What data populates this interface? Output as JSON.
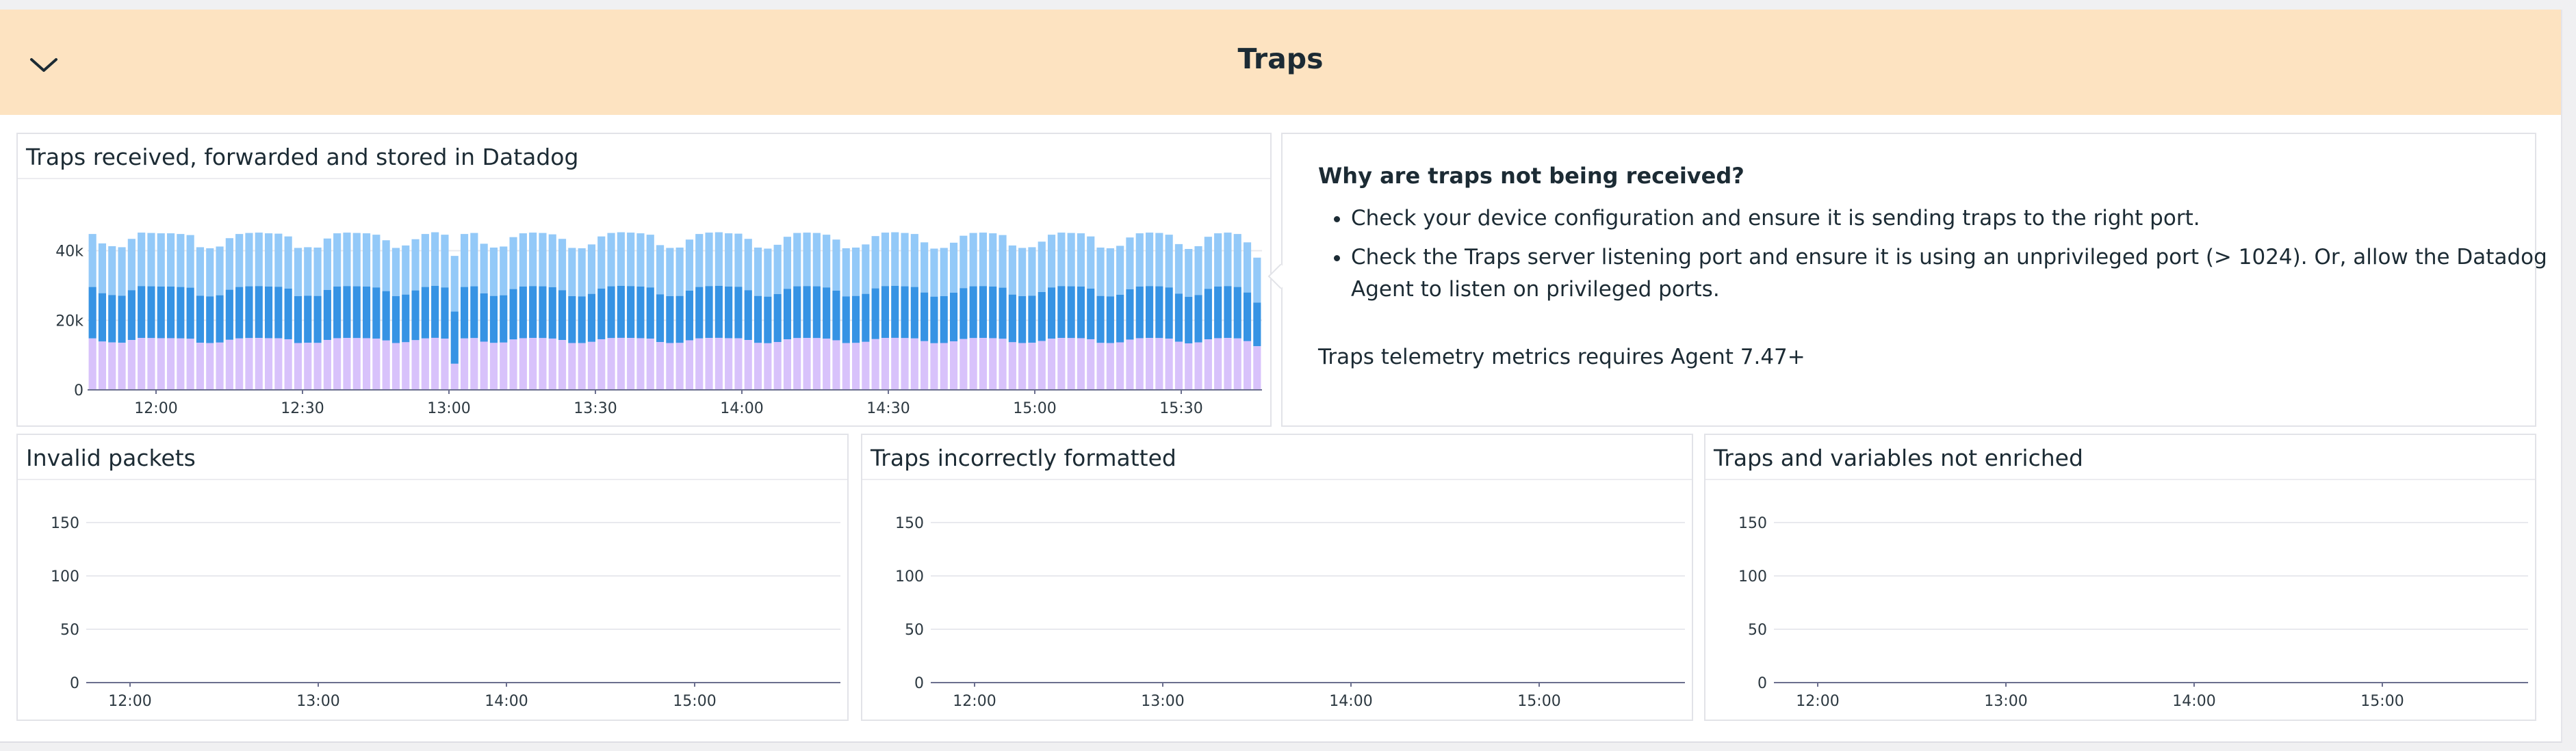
{
  "group": {
    "title": "Traps",
    "collapse_icon": "chevron-down-icon"
  },
  "widgets": {
    "traps_received": {
      "title": "Traps received, forwarded and stored in Datadog"
    },
    "note": {
      "heading": "Why are traps not being received?",
      "bullets": [
        "Check your device configuration and ensure it is sending traps to the right port.",
        "Check the Traps server listening port and ensure it is using an unprivileged port (> 1024). Or, allow the Datadog Agent to listen on privileged ports."
      ],
      "footer": "Traps telemetry metrics requires Agent 7.47+"
    },
    "invalid_packets": {
      "title": "Invalid packets"
    },
    "incorrectly_formatted": {
      "title": "Traps incorrectly formatted"
    },
    "not_enriched": {
      "title": "Traps and variables not enriched"
    }
  },
  "colors": {
    "series_received": "#93c9f8",
    "series_forwarded": "#3693e4",
    "series_stored": "#d8c2fb",
    "gridline": "#e8e9ee",
    "baseline": "#6b6f8e"
  },
  "chart_data": [
    {
      "type": "bar",
      "stacked": true,
      "title": "Traps received, forwarded and stored in Datadog",
      "x_tick_labels": [
        "12:00",
        "12:30",
        "13:00",
        "13:30",
        "14:00",
        "14:30",
        "15:00",
        "15:30"
      ],
      "y_tick_labels": [
        "0",
        "20k",
        "40k"
      ],
      "ylim": [
        0,
        46000
      ],
      "grid": true,
      "stack_order_bottom_to_top": [
        "stored",
        "forwarded",
        "received"
      ],
      "bar_count": 120,
      "stack_totals_k": [
        44.8,
        42.1,
        41.3,
        41.0,
        43.4,
        45.2,
        45.1,
        45.0,
        45.0,
        44.8,
        44.5,
        41.0,
        40.7,
        41.2,
        43.6,
        44.8,
        45.1,
        45.2,
        45.0,
        44.9,
        44.1,
        40.8,
        41.0,
        40.9,
        43.5,
        45.0,
        45.2,
        45.1,
        45.0,
        44.6,
        43.0,
        40.8,
        41.5,
        43.3,
        44.8,
        45.3,
        44.6,
        38.5,
        44.8,
        45.1,
        42.0,
        40.9,
        41.2,
        43.9,
        45.0,
        45.2,
        45.1,
        44.7,
        43.4,
        40.8,
        40.7,
        41.8,
        44.1,
        45.1,
        45.3,
        45.2,
        45.0,
        44.6,
        41.6,
        40.8,
        40.9,
        43.2,
        44.8,
        45.2,
        45.3,
        45.0,
        44.9,
        43.4,
        40.9,
        40.6,
        41.7,
        44.0,
        45.1,
        45.2,
        45.1,
        44.6,
        43.2,
        40.7,
        40.9,
        41.8,
        44.2,
        45.2,
        45.3,
        45.1,
        44.8,
        42.4,
        40.6,
        40.8,
        42.3,
        44.3,
        45.1,
        45.2,
        45.0,
        44.5,
        41.5,
        40.8,
        41.0,
        42.6,
        44.6,
        45.2,
        45.1,
        45.0,
        44.1,
        40.9,
        40.7,
        41.4,
        43.8,
        45.0,
        45.2,
        45.1,
        44.6,
        41.9,
        40.5,
        41.3,
        44.0,
        45.0,
        45.2,
        44.8,
        42.4,
        38.0
      ],
      "stored_fraction": 0.33,
      "forwarded_fraction": 0.33,
      "dip": {
        "bar_index": 37,
        "received_k": 38.5,
        "forwarded_k": 22.5,
        "stored_k": 7.5
      }
    },
    {
      "type": "line",
      "title": "Invalid packets",
      "x_tick_labels": [
        "12:00",
        "13:00",
        "14:00",
        "15:00"
      ],
      "y_tick_labels": [
        "0",
        "50",
        "100",
        "150"
      ],
      "ylim": [
        0,
        150
      ],
      "series": [
        {
          "values": [
            0,
            0
          ]
        }
      ]
    },
    {
      "type": "line",
      "title": "Traps incorrectly formatted",
      "x_tick_labels": [
        "12:00",
        "13:00",
        "14:00",
        "15:00"
      ],
      "y_tick_labels": [
        "0",
        "50",
        "100",
        "150"
      ],
      "ylim": [
        0,
        150
      ],
      "series": [
        {
          "values": [
            0,
            0
          ]
        }
      ]
    },
    {
      "type": "line",
      "title": "Traps and variables not enriched",
      "x_tick_labels": [
        "12:00",
        "13:00",
        "14:00",
        "15:00"
      ],
      "y_tick_labels": [
        "0",
        "50",
        "100",
        "150"
      ],
      "ylim": [
        0,
        150
      ],
      "series": [
        {
          "values": [
            0,
            0
          ]
        }
      ]
    }
  ]
}
